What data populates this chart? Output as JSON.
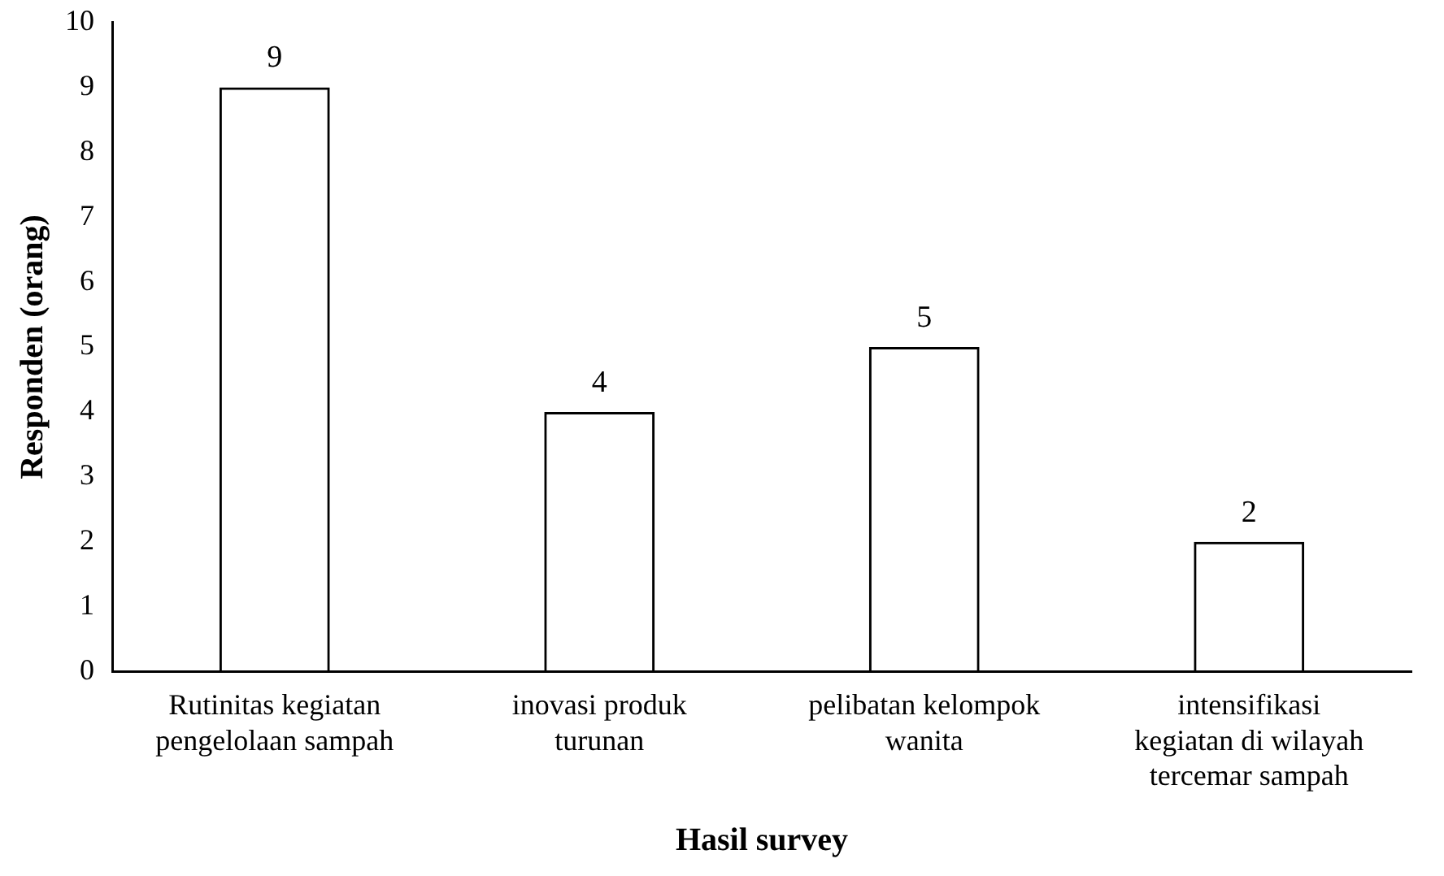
{
  "chart_data": {
    "type": "bar",
    "xlabel": "Hasil survey",
    "ylabel": "Responden (orang)",
    "categories": [
      "Rutinitas kegiatan pengelolaan sampah",
      "inovasi produk turunan",
      "pelibatan kelompok wanita",
      "intensifikasi kegiatan di wilayah tercemar sampah"
    ],
    "values": [
      9,
      4,
      5,
      2
    ],
    "color": "#000000",
    "ylim": [
      0,
      10
    ],
    "yticks": [
      0,
      1,
      2,
      3,
      4,
      5,
      6,
      7,
      8,
      9,
      10
    ],
    "grid": false,
    "data_labels": true
  }
}
